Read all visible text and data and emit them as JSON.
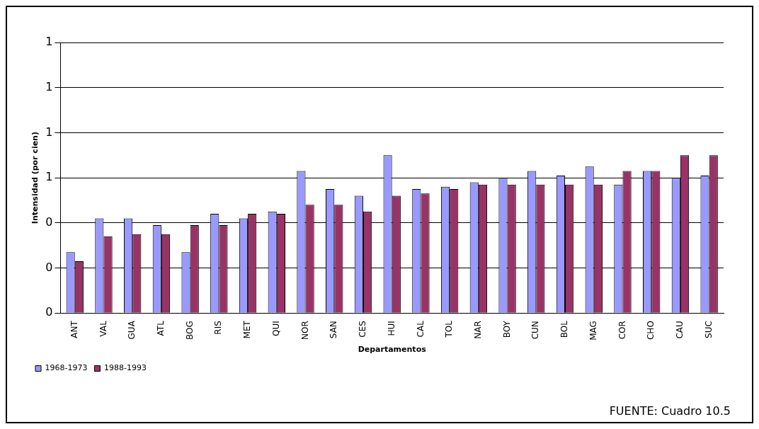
{
  "chart_data": {
    "type": "bar",
    "xlabel": "Departamentos",
    "ylabel": "Intensidad (por cien)",
    "categories": [
      "ANT",
      "VAL",
      "GUA",
      "ATL",
      "BOG",
      "RIS",
      "MET",
      "QUI",
      "NOR",
      "SAN",
      "CES",
      "HUI",
      "CAL",
      "TOL",
      "NAR",
      "BOY",
      "CUN",
      "BOL",
      "MAG",
      "COR",
      "CHO",
      "CAU",
      "SUC"
    ],
    "series": [
      {
        "name": "1968-1973",
        "color": "#9999ff",
        "values": [
          0.27,
          0.42,
          0.42,
          0.39,
          0.27,
          0.44,
          0.42,
          0.45,
          0.63,
          0.55,
          0.52,
          0.7,
          0.55,
          0.56,
          0.58,
          0.6,
          0.63,
          0.61,
          0.65,
          0.57,
          0.63,
          0.6,
          0.61
        ]
      },
      {
        "name": "1988-1993",
        "color": "#993366",
        "values": [
          0.23,
          0.34,
          0.35,
          0.35,
          0.39,
          0.39,
          0.44,
          0.44,
          0.48,
          0.48,
          0.45,
          0.52,
          0.53,
          0.55,
          0.57,
          0.57,
          0.57,
          0.57,
          0.57,
          0.63,
          0.63,
          0.7,
          0.7
        ]
      }
    ],
    "ylim": [
      0,
      1.2
    ],
    "yticks": [
      {
        "value": 0,
        "label": "0"
      },
      {
        "value": 0.2,
        "label": "0"
      },
      {
        "value": 0.4,
        "label": "0"
      },
      {
        "value": 0.6,
        "label": "1"
      },
      {
        "value": 0.8,
        "label": "1"
      },
      {
        "value": 1,
        "label": "1"
      },
      {
        "value": 1.2,
        "label": "1"
      }
    ],
    "grid": "y",
    "legend": "bottom left",
    "annotations": [
      "FUENTE: Cuadro 10.5"
    ]
  }
}
